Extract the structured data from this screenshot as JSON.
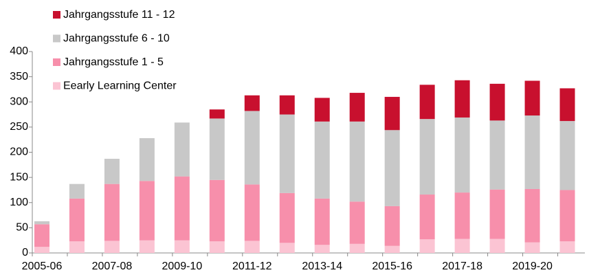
{
  "chart_data": {
    "type": "stacked_bar",
    "categories": [
      "2005-06",
      null,
      "2007-08",
      null,
      "2009-10",
      null,
      "2011-12",
      null,
      "2013-14",
      null,
      "2015-16",
      null,
      "2017-18",
      null,
      "2019-20",
      null
    ],
    "series": [
      {
        "name": "Eearly Learning Center",
        "color": "#fbc4d3",
        "values": [
          12,
          23,
          24,
          25,
          25,
          23,
          24,
          20,
          16,
          18,
          14,
          27,
          28,
          28,
          21,
          23
        ]
      },
      {
        "name": "Jahrgangsstufe 1 - 5",
        "color": "#f78fab",
        "values": [
          45,
          85,
          113,
          118,
          127,
          122,
          112,
          99,
          92,
          84,
          79,
          89,
          92,
          98,
          106,
          102
        ]
      },
      {
        "name": "Jahrgangsstufe 6 - 10",
        "color": "#c8c8c8",
        "values": [
          6,
          29,
          50,
          85,
          107,
          122,
          146,
          156,
          153,
          159,
          151,
          150,
          149,
          137,
          146,
          137
        ]
      },
      {
        "name": "Jahrgangsstufe 11 - 12",
        "color": "#c8102e",
        "values": [
          0,
          0,
          0,
          0,
          0,
          18,
          31,
          38,
          47,
          57,
          66,
          68,
          74,
          73,
          69,
          65
        ]
      }
    ],
    "ylim": [
      0,
      400
    ],
    "yticks": [
      0,
      50,
      100,
      150,
      200,
      250,
      300,
      350,
      400
    ],
    "legend": "top-left"
  }
}
